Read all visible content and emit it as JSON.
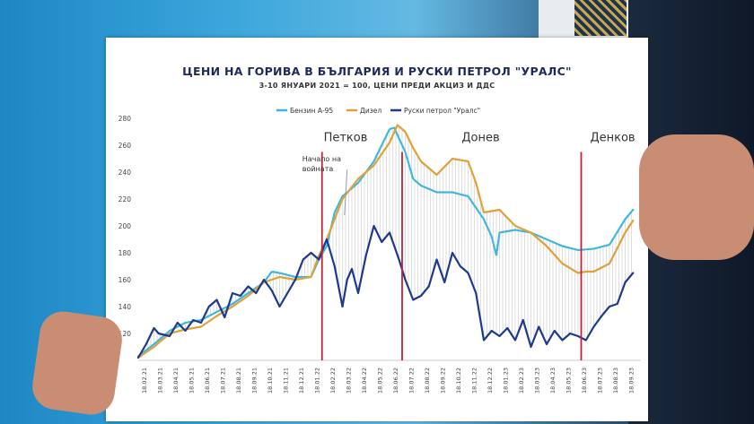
{
  "chart_data": {
    "type": "line",
    "title": "ЦЕНИ НА ГОРИВА В БЪЛГАРИЯ И РУСКИ ПЕТРОЛ \"УРАЛС\"",
    "subtitle": "3-10 ЯНУАРИ 2021 = 100, ЦЕНИ ПРЕДИ АКЦИЗ И ДДС",
    "ylim": [
      100,
      280
    ],
    "yticks": [
      "120",
      "140",
      "160",
      "180",
      "200",
      "220",
      "240",
      "260",
      "280"
    ],
    "xlim": [
      0,
      32
    ],
    "xtick_labels": [
      "18.02.21",
      "18.03.21",
      "18.04.21",
      "18.05.21",
      "18.06.21",
      "18.07.21",
      "18.08.21",
      "18.09.21",
      "18.10.21",
      "18.11.21",
      "18.12.21",
      "18.01.22",
      "18.02.22",
      "18.03.22",
      "18.04.22",
      "18.05.22",
      "18.06.22",
      "18.07.22",
      "18.08.22",
      "18.09.22",
      "18.10.22",
      "18.11.22",
      "18.12.22",
      "18.01.23",
      "18.02.23",
      "18.03.23",
      "18.04.23",
      "18.05.23",
      "18.06.23",
      "18.07.23",
      "18.08.23",
      "18.09.23"
    ],
    "legend_position": "top",
    "series": [
      {
        "name": "Бензин А-95",
        "color": "#3db7dc",
        "style": "dashed",
        "x": [
          0,
          1,
          2,
          3,
          4,
          5,
          6,
          7,
          8,
          8.5,
          9,
          10,
          11,
          11.5,
          12,
          12.5,
          13,
          14,
          14.5,
          15,
          15.5,
          16,
          16.3,
          16.6,
          17,
          17.5,
          18,
          19,
          20,
          21,
          22,
          22.5,
          22.8,
          23,
          24,
          25,
          26,
          27,
          28,
          29,
          30,
          31,
          31.5
        ],
        "y": [
          103,
          112,
          122,
          128,
          130,
          136,
          142,
          150,
          158,
          166,
          165,
          162,
          162,
          175,
          185,
          210,
          222,
          232,
          240,
          248,
          260,
          272,
          273,
          265,
          255,
          235,
          230,
          225,
          225,
          222,
          205,
          192,
          178,
          195,
          197,
          195,
          190,
          185,
          182,
          183,
          186,
          205,
          212
        ]
      },
      {
        "name": "Дизел",
        "color": "#e0a13a",
        "style": "solid",
        "x": [
          0,
          1,
          2,
          3,
          4,
          5,
          6,
          7,
          8,
          9,
          10,
          11,
          11.5,
          12,
          13,
          14,
          15,
          16,
          16.5,
          17,
          17.5,
          18,
          19,
          20,
          21,
          21.5,
          22,
          23,
          24,
          25,
          26,
          27,
          28,
          28.5,
          29,
          30,
          31,
          31.5
        ],
        "y": [
          102,
          110,
          120,
          123,
          125,
          133,
          140,
          148,
          158,
          162,
          160,
          162,
          178,
          190,
          220,
          235,
          245,
          262,
          275,
          270,
          258,
          248,
          238,
          250,
          248,
          232,
          210,
          212,
          200,
          195,
          185,
          172,
          165,
          166,
          166,
          172,
          195,
          204
        ]
      },
      {
        "name": "Руски петрол \"Уралс\"",
        "color": "#1f3a8a",
        "style": "solid",
        "x": [
          0,
          0.5,
          1,
          1.3,
          2,
          2.5,
          3,
          3.5,
          4,
          4.5,
          5,
          5.5,
          6,
          6.5,
          7,
          7.5,
          8,
          8.5,
          9,
          9.5,
          10,
          10.5,
          11,
          11.5,
          12,
          12.5,
          13,
          13.3,
          13.6,
          14,
          14.5,
          15,
          15.5,
          16,
          16.3,
          16.6,
          17,
          17.5,
          18,
          18.5,
          19,
          19.5,
          20,
          20.5,
          21,
          21.5,
          22,
          22.5,
          23,
          23.5,
          24,
          24.5,
          25,
          25.5,
          26,
          26.5,
          27,
          27.5,
          28,
          28.5,
          29,
          29.5,
          30,
          30.5,
          31,
          31.5
        ],
        "y": [
          102,
          112,
          124,
          120,
          118,
          128,
          122,
          130,
          128,
          140,
          145,
          132,
          150,
          148,
          155,
          150,
          160,
          152,
          140,
          150,
          160,
          175,
          180,
          175,
          190,
          170,
          140,
          160,
          168,
          150,
          178,
          200,
          188,
          195,
          185,
          175,
          160,
          145,
          148,
          155,
          175,
          158,
          180,
          170,
          165,
          150,
          115,
          122,
          118,
          124,
          115,
          130,
          110,
          125,
          112,
          122,
          115,
          120,
          118,
          115,
          125,
          133,
          140,
          142,
          158,
          165
        ]
      }
    ],
    "vlines": [
      {
        "x": 11.7,
        "label": "Начало на войната",
        "color": "#c0223a"
      },
      {
        "x": 16.8,
        "label": "",
        "color": "#c0223a"
      },
      {
        "x": 28.2,
        "label": "",
        "color": "#c0223a"
      }
    ],
    "region_labels": [
      {
        "x": 13.2,
        "y": 263,
        "label": "Петков"
      },
      {
        "x": 21.8,
        "y": 263,
        "label": "Донев"
      },
      {
        "x": 30.2,
        "y": 263,
        "label": "Денков"
      }
    ],
    "arrow": {
      "x": 13.3,
      "y_from": 242,
      "y_to": 208
    }
  }
}
